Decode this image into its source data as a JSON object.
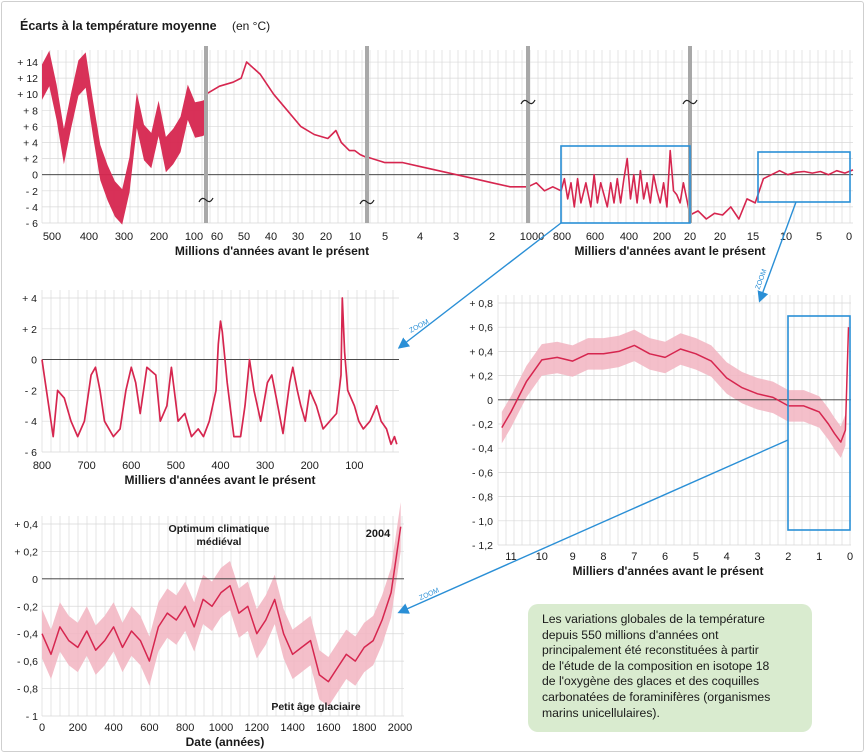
{
  "colors": {
    "series": "#d6264f",
    "band": "#f2b4c1",
    "zoom": "#2a8fd6",
    "grid": "#d9d9d9",
    "axis": "#1a1a1a"
  },
  "chart_data": [
    {
      "id": "main",
      "type": "line",
      "title": "Écarts à la température moyenne",
      "title_unit": "(en °C)",
      "ylabel": "",
      "ylim": [
        -6,
        15
      ],
      "yticks": [
        "+ 14",
        "+ 12",
        "+ 10",
        "+ 8",
        "+ 6",
        "+ 4",
        "+ 2",
        "0",
        "- 2",
        "- 4",
        "- 6"
      ],
      "grid": true,
      "segments": [
        {
          "unit": "Millions d'années",
          "x_range": [
            520,
            70
          ],
          "ticks": [
            "500",
            "400",
            "300",
            "200",
            "100"
          ],
          "x": [
            520,
            500,
            480,
            460,
            440,
            420,
            400,
            380,
            360,
            340,
            320,
            300,
            280,
            260,
            240,
            220,
            200,
            180,
            160,
            140,
            120,
            100,
            80,
            70
          ],
          "y": [
            11.5,
            13.2,
            9,
            3.5,
            8,
            12,
            13,
            7,
            1.5,
            -1,
            -3,
            -4,
            0,
            8,
            4,
            3,
            7,
            2.5,
            3.5,
            5,
            9,
            6.8,
            7,
            7.2
          ],
          "band": 2.2
        },
        {
          "unit": "Millions d'années",
          "x_range": [
            65,
            5.5
          ],
          "ticks": [
            "60",
            "50",
            "40",
            "30",
            "20",
            "10"
          ],
          "x": [
            65,
            60,
            55,
            52,
            50,
            45,
            40,
            35,
            30,
            25,
            20,
            17,
            15,
            12,
            10,
            8,
            6
          ],
          "y": [
            10,
            11,
            11.5,
            12,
            14,
            12.5,
            10,
            8,
            6,
            5,
            4.5,
            5.5,
            4,
            3,
            3,
            2.5,
            2.2
          ]
        },
        {
          "unit": "Millions d'années",
          "x_range": [
            5.5,
            1.0
          ],
          "ticks": [
            "5",
            "4",
            "3",
            "2"
          ],
          "x": [
            5.5,
            5,
            4.5,
            4,
            3.5,
            3,
            2.5,
            2,
            1.5,
            1
          ],
          "y": [
            2.2,
            1.5,
            1.5,
            1,
            0.5,
            0,
            -0.5,
            -1,
            -1.5,
            -1.5
          ]
        },
        {
          "unit": "Milliers d'années",
          "x_range": [
            1000,
            20
          ],
          "ticks": [
            "1000",
            "800",
            "600",
            "400",
            "200",
            "20"
          ],
          "x": [
            1000,
            950,
            900,
            850,
            800,
            780,
            760,
            740,
            720,
            700,
            680,
            650,
            620,
            600,
            580,
            560,
            540,
            520,
            500,
            480,
            460,
            440,
            420,
            400,
            380,
            360,
            340,
            320,
            300,
            280,
            260,
            240,
            220,
            200,
            180,
            160,
            140,
            120,
            100,
            80,
            60,
            40,
            20
          ],
          "y": [
            -1.5,
            -1,
            -2,
            -1.5,
            -2,
            -0.5,
            -3,
            -1,
            -4,
            -0.5,
            -3.5,
            -1,
            -4,
            0,
            -3.5,
            -1,
            -2.5,
            -4,
            -1,
            -3.5,
            -0.5,
            -3.5,
            -0.5,
            2,
            -3,
            0,
            -3.5,
            0.5,
            -3,
            -1,
            -3.5,
            0,
            -2,
            -3.5,
            -1,
            -4,
            3,
            -2,
            -2.5,
            -3.5,
            -1,
            -3,
            -5
          ]
        },
        {
          "unit": "Milliers d'années",
          "x_range": [
            20,
            0
          ],
          "ticks": [
            "20",
            "15",
            "10",
            "5",
            "0"
          ],
          "x": [
            20,
            19,
            18,
            17,
            16,
            15,
            14,
            13,
            12,
            11.5,
            11,
            10,
            9,
            8,
            7,
            6,
            5,
            4,
            3,
            2,
            1,
            0
          ],
          "y": [
            -5,
            -4.5,
            -5.5,
            -4.8,
            -5,
            -4,
            -5.5,
            -3,
            -3.5,
            -2,
            -0.5,
            0,
            0.5,
            0,
            0.3,
            0.4,
            0.2,
            0.4,
            0,
            0.5,
            0.2,
            0.6
          ]
        }
      ],
      "xlabel_left": "Millions d'années avant le présent",
      "xlabel_right": "Milliers d'années avant le présent"
    },
    {
      "id": "zoom800",
      "type": "line",
      "xlabel": "Milliers d'années avant le présent",
      "ylabel": "",
      "xlim": [
        800,
        0
      ],
      "ylim": [
        -6,
        4.5
      ],
      "xticks": [
        "800",
        "700",
        "600",
        "500",
        "400",
        "300",
        "200",
        "100"
      ],
      "yticks": [
        "+ 4",
        "+ 2",
        "0",
        "- 2",
        "- 4",
        "- 6"
      ],
      "grid": true,
      "x": [
        800,
        795,
        785,
        775,
        765,
        750,
        735,
        720,
        705,
        690,
        680,
        670,
        660,
        640,
        625,
        612,
        600,
        590,
        580,
        565,
        545,
        535,
        520,
        510,
        495,
        480,
        465,
        450,
        438,
        425,
        410,
        405,
        400,
        396,
        385,
        370,
        355,
        345,
        335,
        325,
        310,
        295,
        285,
        275,
        260,
        245,
        238,
        228,
        220,
        210,
        200,
        185,
        170,
        155,
        140,
        130,
        127,
        122,
        115,
        100,
        90,
        80,
        65,
        50,
        40,
        28,
        18,
        10,
        5
      ],
      "y": [
        0,
        -1,
        -3,
        -5,
        -2,
        -2.5,
        -4,
        -5,
        -4,
        -1,
        -0.5,
        -2,
        -4,
        -5,
        -4.5,
        -2,
        -0.5,
        -1.5,
        -3.5,
        -0.5,
        -1,
        -4,
        -3,
        -0.5,
        -4,
        -3.5,
        -5,
        -4.5,
        -5,
        -4,
        -2,
        1,
        2.5,
        1.8,
        -1.5,
        -5,
        -5,
        -3,
        0,
        -2,
        -4,
        -1.5,
        -1,
        -2.5,
        -4.8,
        -1.5,
        -0.5,
        -2,
        -3,
        -4,
        -2,
        -3,
        -4.5,
        -4,
        -3.5,
        -1,
        4,
        0.5,
        -2,
        -3,
        -4,
        -4.5,
        -4,
        -3,
        -4,
        -4.5,
        -5.5,
        -5,
        -5.5
      ]
    },
    {
      "id": "zoom11",
      "type": "area",
      "xlabel": "Milliers d'années avant le présent",
      "ylabel": "",
      "xlim": [
        11.5,
        0
      ],
      "ylim": [
        -1.2,
        0.85
      ],
      "xticks": [
        "11",
        "10",
        "9",
        "8",
        "7",
        "6",
        "5",
        "4",
        "3",
        "2",
        "1",
        "0"
      ],
      "yticks": [
        "+ 0,8",
        "+ 0,6",
        "+ 0,4",
        "+ 0,2",
        "0",
        "- 0,2",
        "- 0,4",
        "- 0,6",
        "- 0,8",
        "- 1,0",
        "- 1,2"
      ],
      "grid": true,
      "x": [
        11.3,
        11,
        10.5,
        10,
        9.5,
        9,
        8.5,
        8,
        7.5,
        7,
        6.5,
        6,
        5.5,
        5,
        4.5,
        4,
        3.5,
        3,
        2.5,
        2,
        1.5,
        1.2,
        1,
        0.7,
        0.5,
        0.3,
        0.15,
        0.05
      ],
      "y": [
        -0.23,
        -0.1,
        0.15,
        0.33,
        0.35,
        0.32,
        0.38,
        0.38,
        0.4,
        0.45,
        0.38,
        0.35,
        0.42,
        0.38,
        0.32,
        0.18,
        0.1,
        0.05,
        0.02,
        -0.05,
        -0.05,
        -0.08,
        -0.1,
        -0.2,
        -0.28,
        -0.35,
        -0.25,
        0.6
      ],
      "band": 0.13
    },
    {
      "id": "zoom2000",
      "type": "area",
      "xlabel": "Date (années)",
      "ylabel": "",
      "xlim": [
        0,
        2020
      ],
      "ylim": [
        -1,
        0.45
      ],
      "xticks": [
        "0",
        "200",
        "400",
        "600",
        "800",
        "1000",
        "1200",
        "1400",
        "1600",
        "1800",
        "2000"
      ],
      "yticks": [
        "+ 0,4",
        "+ 0,2",
        "0",
        "- 0,2",
        "- 0,4",
        "- 0,6",
        "- 0,8",
        "- 1"
      ],
      "grid": true,
      "annotations": [
        "Optimum climatique",
        "médiéval",
        "2004",
        "Petit âge glaciaire"
      ],
      "x": [
        0,
        50,
        100,
        150,
        200,
        250,
        300,
        350,
        400,
        450,
        500,
        550,
        600,
        650,
        700,
        750,
        800,
        850,
        900,
        950,
        1000,
        1050,
        1100,
        1150,
        1200,
        1250,
        1300,
        1350,
        1400,
        1450,
        1500,
        1550,
        1600,
        1650,
        1700,
        1750,
        1800,
        1850,
        1900,
        1950,
        2004
      ],
      "y": [
        -0.4,
        -0.55,
        -0.35,
        -0.45,
        -0.5,
        -0.38,
        -0.52,
        -0.45,
        -0.35,
        -0.5,
        -0.38,
        -0.45,
        -0.6,
        -0.35,
        -0.25,
        -0.3,
        -0.2,
        -0.35,
        -0.15,
        -0.2,
        -0.1,
        -0.05,
        -0.25,
        -0.2,
        -0.4,
        -0.3,
        -0.15,
        -0.4,
        -0.55,
        -0.5,
        -0.45,
        -0.7,
        -0.75,
        -0.65,
        -0.55,
        -0.6,
        -0.5,
        -0.45,
        -0.3,
        -0.1,
        0.38
      ],
      "band": 0.18
    }
  ],
  "labels": {
    "zoom": "ZOOM"
  },
  "note": {
    "lines": [
      "Les variations globales de la température",
      "depuis 550 millions d'années ont",
      "principalement été reconstituées à partir",
      "de l'étude de la composition en isotope 18",
      "de l'oxygène des glaces et des coquilles",
      "carbonatées de foraminifères (organismes",
      "marins unicellulaires)."
    ]
  }
}
